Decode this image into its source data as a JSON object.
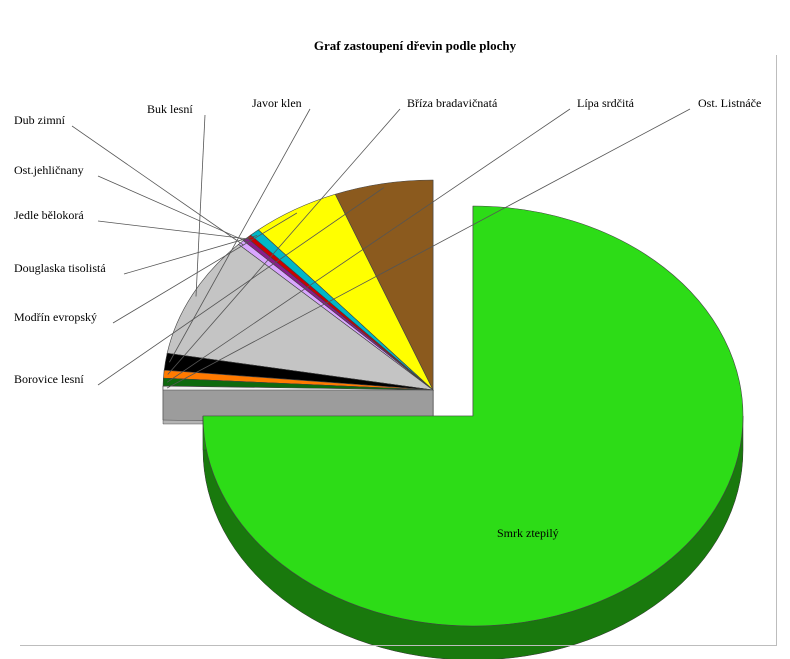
{
  "chart_data": {
    "type": "pie",
    "title": "Graf zastoupení dřevin podle plochy",
    "view": "3d-exploded",
    "slices": [
      {
        "name": "Smrk ztepilý",
        "value": 75.0,
        "color": "#2ddc17"
      },
      {
        "name": "Ost. Listnáče",
        "value": 0.3,
        "color": "#f0f0f0"
      },
      {
        "name": "Lípa srdčitá",
        "value": 0.6,
        "color": "#0e6a0e"
      },
      {
        "name": "Bříza bradavičnatá",
        "value": 0.6,
        "color": "#ff7a00"
      },
      {
        "name": "Javor klen",
        "value": 1.3,
        "color": "#000000"
      },
      {
        "name": "Buk lesní",
        "value": 9.4,
        "color": "#c4c4c4"
      },
      {
        "name": "Dub zimní",
        "value": 0.4,
        "color": "#d9a6ff"
      },
      {
        "name": "Ost.jehličnany",
        "value": 0.3,
        "color": "#8a1d8a"
      },
      {
        "name": "Jedle bělokorá",
        "value": 0.3,
        "color": "#cc0000"
      },
      {
        "name": "Douglaska tisolistá",
        "value": 0.6,
        "color": "#00b7c7"
      },
      {
        "name": "Modřín evropský",
        "value": 5.3,
        "color": "#ffff00"
      },
      {
        "name": "Borovice lesní",
        "value": 5.9,
        "color": "#8b5a1e"
      }
    ]
  }
}
